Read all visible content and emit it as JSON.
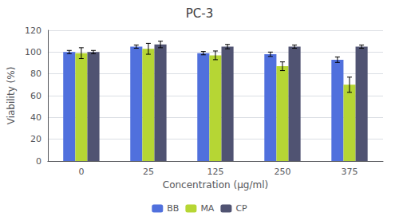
{
  "chart_data": {
    "type": "bar",
    "title": "PC-3",
    "xlabel": "Concentration (μg/ml)",
    "ylabel": "Viability (%)",
    "categories": [
      "0",
      "25",
      "125",
      "250",
      "375"
    ],
    "series": [
      {
        "name": "BB",
        "values": [
          100,
          105,
          99,
          98,
          93
        ],
        "errors": [
          1.5,
          1.5,
          1.5,
          2.0,
          2.5
        ]
      },
      {
        "name": "MA",
        "values": [
          99,
          103,
          97,
          87,
          70
        ],
        "errors": [
          5,
          5,
          4,
          4,
          7
        ]
      },
      {
        "name": "CP",
        "values": [
          100,
          107,
          105,
          105,
          105
        ],
        "errors": [
          1.5,
          3,
          2,
          1.5,
          1.5
        ]
      }
    ],
    "ylim": [
      0,
      120
    ],
    "yticks": [
      0,
      20,
      40,
      60,
      80,
      100,
      120
    ],
    "grid": true,
    "legend": "bottom"
  }
}
